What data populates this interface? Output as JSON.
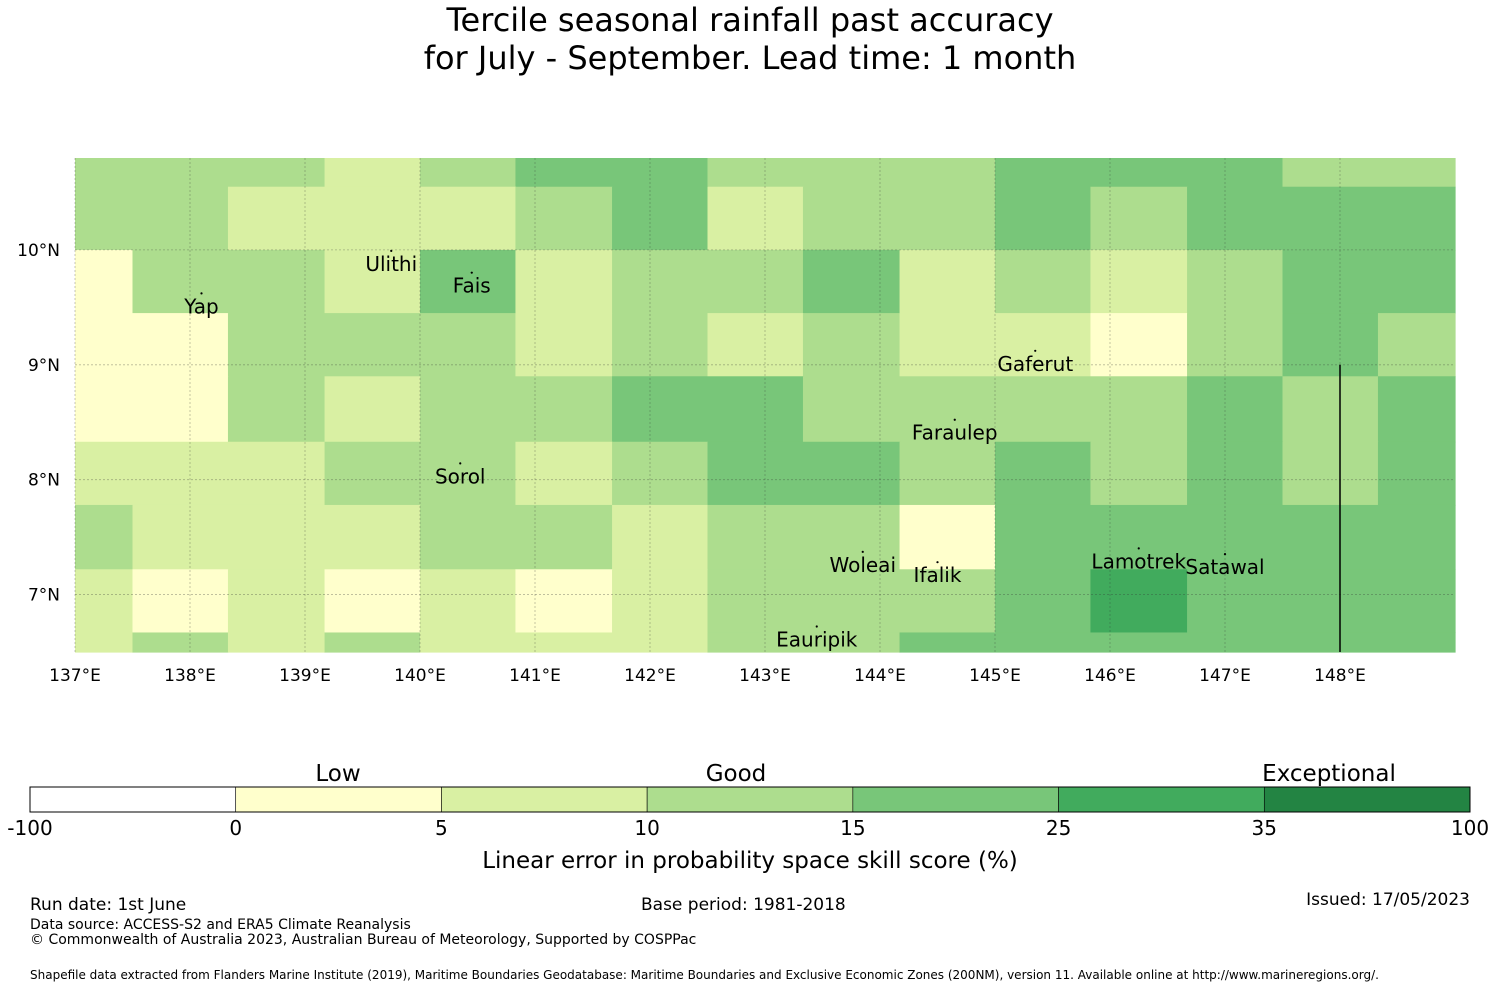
{
  "title": {
    "line1": "Tercile seasonal rainfall past accuracy",
    "line2": "for July - September. Lead time: 1 month"
  },
  "map": {
    "lat_ticks": [
      "10°N",
      "9°N",
      "8°N",
      "7°N"
    ],
    "lon_ticks": [
      "137°E",
      "138°E",
      "139°E",
      "140°E",
      "141°E",
      "142°E",
      "143°E",
      "144°E",
      "145°E",
      "146°E",
      "147°E",
      "148°E"
    ],
    "places": [
      {
        "name": "Ulithi",
        "lon": 139.75,
        "lat": 9.87
      },
      {
        "name": "Yap",
        "lon": 138.1,
        "lat": 9.5
      },
      {
        "name": "Fais",
        "lon": 140.45,
        "lat": 9.68
      },
      {
        "name": "Gaferut",
        "lon": 145.35,
        "lat": 9.0
      },
      {
        "name": "Faraulep",
        "lon": 144.65,
        "lat": 8.4
      },
      {
        "name": "Sorol",
        "lon": 140.35,
        "lat": 8.02
      },
      {
        "name": "Woleai",
        "lon": 143.85,
        "lat": 7.25
      },
      {
        "name": "Ifalik",
        "lon": 144.5,
        "lat": 7.16
      },
      {
        "name": "Lamotrek",
        "lon": 146.25,
        "lat": 7.28
      },
      {
        "name": "Satawal",
        "lon": 147.0,
        "lat": 7.23
      },
      {
        "name": "Eauripik",
        "lon": 143.45,
        "lat": 6.6
      }
    ],
    "color_classes": {
      "0-5": "#ffffcc",
      "5-10": "#d9f0a3",
      "10-15": "#addd8e",
      "15-25": "#78c679",
      "25-35": "#41ab5d",
      "35-100": "#238443"
    },
    "grid_rows": [
      {
        "lat_top": 10.8,
        "lat_bottom": 10.55,
        "segments": [
          {
            "from": 137.0,
            "to": 139.17,
            "class": "10-15"
          },
          {
            "from": 139.17,
            "to": 140.0,
            "class": "5-10"
          },
          {
            "from": 140.0,
            "to": 140.83,
            "class": "10-15"
          },
          {
            "from": 140.83,
            "to": 142.5,
            "class": "15-25"
          },
          {
            "from": 142.5,
            "to": 145.0,
            "class": "10-15"
          },
          {
            "from": 145.0,
            "to": 147.5,
            "class": "15-25"
          },
          {
            "from": 147.5,
            "to": 149.0,
            "class": "10-15"
          }
        ]
      },
      {
        "lat_top": 10.55,
        "lat_bottom": 10.0,
        "segments": [
          {
            "from": 137.0,
            "to": 138.33,
            "class": "10-15"
          },
          {
            "from": 138.33,
            "to": 140.83,
            "class": "5-10"
          },
          {
            "from": 140.83,
            "to": 141.67,
            "class": "10-15"
          },
          {
            "from": 141.67,
            "to": 142.5,
            "class": "15-25"
          },
          {
            "from": 142.5,
            "to": 143.33,
            "class": "5-10"
          },
          {
            "from": 143.33,
            "to": 145.0,
            "class": "10-15"
          },
          {
            "from": 145.0,
            "to": 145.83,
            "class": "15-25"
          },
          {
            "from": 145.83,
            "to": 146.67,
            "class": "10-15"
          },
          {
            "from": 146.67,
            "to": 149.0,
            "class": "15-25"
          }
        ]
      },
      {
        "lat_top": 10.0,
        "lat_bottom": 9.45,
        "segments": [
          {
            "from": 137.0,
            "to": 137.5,
            "class": "0-5"
          },
          {
            "from": 137.5,
            "to": 139.17,
            "class": "10-15"
          },
          {
            "from": 139.17,
            "to": 140.0,
            "class": "5-10"
          },
          {
            "from": 140.0,
            "to": 140.83,
            "class": "15-25"
          },
          {
            "from": 140.83,
            "to": 141.67,
            "class": "5-10"
          },
          {
            "from": 141.67,
            "to": 143.33,
            "class": "10-15"
          },
          {
            "from": 143.33,
            "to": 144.17,
            "class": "15-25"
          },
          {
            "from": 144.17,
            "to": 145.0,
            "class": "5-10"
          },
          {
            "from": 145.0,
            "to": 145.83,
            "class": "10-15"
          },
          {
            "from": 145.83,
            "to": 146.67,
            "class": "5-10"
          },
          {
            "from": 146.67,
            "to": 147.5,
            "class": "10-15"
          },
          {
            "from": 147.5,
            "to": 149.0,
            "class": "15-25"
          }
        ]
      },
      {
        "lat_top": 9.45,
        "lat_bottom": 9.0,
        "segments": [
          {
            "from": 137.0,
            "to": 138.33,
            "class": "0-5"
          },
          {
            "from": 138.33,
            "to": 140.83,
            "class": "10-15"
          },
          {
            "from": 140.83,
            "to": 141.67,
            "class": "5-10"
          },
          {
            "from": 141.67,
            "to": 142.5,
            "class": "10-15"
          },
          {
            "from": 142.5,
            "to": 143.33,
            "class": "5-10"
          },
          {
            "from": 143.33,
            "to": 144.17,
            "class": "10-15"
          },
          {
            "from": 144.17,
            "to": 145.83,
            "class": "5-10"
          },
          {
            "from": 145.83,
            "to": 146.67,
            "class": "0-5"
          },
          {
            "from": 146.67,
            "to": 147.5,
            "class": "10-15"
          },
          {
            "from": 147.5,
            "to": 148.33,
            "class": "15-25"
          },
          {
            "from": 148.33,
            "to": 149.0,
            "class": "10-15"
          }
        ]
      },
      {
        "lat_top": 9.0,
        "lat_bottom": 8.9,
        "segments": [
          {
            "from": 137.0,
            "to": 138.33,
            "class": "0-5"
          },
          {
            "from": 138.33,
            "to": 140.83,
            "class": "10-15"
          },
          {
            "from": 140.83,
            "to": 141.67,
            "class": "5-10"
          },
          {
            "from": 141.67,
            "to": 142.5,
            "class": "10-15"
          },
          {
            "from": 142.5,
            "to": 143.33,
            "class": "5-10"
          },
          {
            "from": 143.33,
            "to": 144.17,
            "class": "10-15"
          },
          {
            "from": 144.17,
            "to": 145.83,
            "class": "5-10"
          },
          {
            "from": 145.83,
            "to": 146.67,
            "class": "0-5"
          },
          {
            "from": 146.67,
            "to": 147.5,
            "class": "10-15"
          },
          {
            "from": 147.5,
            "to": 148.33,
            "class": "15-25"
          },
          {
            "from": 148.33,
            "to": 149.0,
            "class": "10-15"
          }
        ]
      },
      {
        "lat_top": 8.9,
        "lat_bottom": 8.33,
        "segments": [
          {
            "from": 137.0,
            "to": 138.33,
            "class": "0-5"
          },
          {
            "from": 138.33,
            "to": 139.17,
            "class": "10-15"
          },
          {
            "from": 139.17,
            "to": 140.0,
            "class": "5-10"
          },
          {
            "from": 140.0,
            "to": 141.67,
            "class": "10-15"
          },
          {
            "from": 141.67,
            "to": 143.33,
            "class": "15-25"
          },
          {
            "from": 143.33,
            "to": 146.67,
            "class": "10-15"
          },
          {
            "from": 146.67,
            "to": 147.5,
            "class": "15-25"
          },
          {
            "from": 147.5,
            "to": 148.33,
            "class": "10-15"
          },
          {
            "from": 148.33,
            "to": 149.0,
            "class": "15-25"
          }
        ]
      },
      {
        "lat_top": 8.33,
        "lat_bottom": 7.78,
        "segments": [
          {
            "from": 137.0,
            "to": 139.17,
            "class": "5-10"
          },
          {
            "from": 139.17,
            "to": 140.83,
            "class": "10-15"
          },
          {
            "from": 140.83,
            "to": 141.67,
            "class": "5-10"
          },
          {
            "from": 141.67,
            "to": 142.5,
            "class": "10-15"
          },
          {
            "from": 142.5,
            "to": 144.17,
            "class": "15-25"
          },
          {
            "from": 144.17,
            "to": 145.0,
            "class": "10-15"
          },
          {
            "from": 145.0,
            "to": 145.83,
            "class": "15-25"
          },
          {
            "from": 145.83,
            "to": 146.67,
            "class": "10-15"
          },
          {
            "from": 146.67,
            "to": 147.5,
            "class": "15-25"
          },
          {
            "from": 147.5,
            "to": 148.33,
            "class": "10-15"
          },
          {
            "from": 148.33,
            "to": 149.0,
            "class": "15-25"
          }
        ]
      },
      {
        "lat_top": 7.78,
        "lat_bottom": 7.22,
        "segments": [
          {
            "from": 137.0,
            "to": 137.5,
            "class": "10-15"
          },
          {
            "from": 137.5,
            "to": 140.0,
            "class": "5-10"
          },
          {
            "from": 140.0,
            "to": 141.67,
            "class": "10-15"
          },
          {
            "from": 141.67,
            "to": 142.5,
            "class": "5-10"
          },
          {
            "from": 142.5,
            "to": 144.17,
            "class": "10-15"
          },
          {
            "from": 144.17,
            "to": 145.0,
            "class": "0-5"
          },
          {
            "from": 145.0,
            "to": 149.0,
            "class": "15-25"
          }
        ]
      },
      {
        "lat_top": 7.22,
        "lat_bottom": 6.67,
        "segments": [
          {
            "from": 137.0,
            "to": 137.5,
            "class": "5-10"
          },
          {
            "from": 137.5,
            "to": 138.33,
            "class": "0-5"
          },
          {
            "from": 138.33,
            "to": 139.17,
            "class": "5-10"
          },
          {
            "from": 139.17,
            "to": 140.0,
            "class": "0-5"
          },
          {
            "from": 140.0,
            "to": 140.83,
            "class": "5-10"
          },
          {
            "from": 140.83,
            "to": 141.67,
            "class": "0-5"
          },
          {
            "from": 141.67,
            "to": 142.5,
            "class": "5-10"
          },
          {
            "from": 142.5,
            "to": 145.0,
            "class": "10-15"
          },
          {
            "from": 145.0,
            "to": 145.83,
            "class": "15-25"
          },
          {
            "from": 145.83,
            "to": 146.67,
            "class": "25-35"
          },
          {
            "from": 146.67,
            "to": 149.0,
            "class": "15-25"
          }
        ]
      },
      {
        "lat_top": 6.67,
        "lat_bottom": 6.5,
        "segments": [
          {
            "from": 137.0,
            "to": 137.5,
            "class": "5-10"
          },
          {
            "from": 137.5,
            "to": 138.33,
            "class": "10-15"
          },
          {
            "from": 138.33,
            "to": 139.17,
            "class": "5-10"
          },
          {
            "from": 139.17,
            "to": 140.0,
            "class": "10-15"
          },
          {
            "from": 140.0,
            "to": 142.5,
            "class": "5-10"
          },
          {
            "from": 142.5,
            "to": 144.17,
            "class": "10-15"
          },
          {
            "from": 144.17,
            "to": 149.0,
            "class": "15-25"
          }
        ]
      }
    ],
    "boundary_line": {
      "lon": 148.0,
      "lat_from": 6.5,
      "lat_to": 9.0
    }
  },
  "legend": {
    "category_labels": [
      "Low",
      "Good",
      "Exceptional"
    ],
    "boundaries": [
      "-100",
      "0",
      "5",
      "10",
      "15",
      "25",
      "35",
      "100"
    ],
    "colors": [
      "#ffffff",
      "#ffffcc",
      "#d9f0a3",
      "#addd8e",
      "#78c679",
      "#41ab5d",
      "#238443"
    ],
    "axis_label": "Linear error in probability space skill score (%)"
  },
  "footer": {
    "run_date": "Run date: 1st June",
    "base_period": "Base period: 1981-2018",
    "issued": "Issued: 17/05/2023",
    "data_source": "Data source: ACCESS-S2 and ERA5 Climate Reanalysis",
    "copyright": "© Commonwealth of Australia 2023, Australian Bureau of Meteorology, Supported by COSPPac",
    "shapefile": "Shapefile data extracted from Flanders Marine Institute (2019), Maritime Boundaries Geodatabase: Maritime Boundaries and Exclusive Economic Zones (200NM), version 11. Available online at http://www.marineregions.org/."
  }
}
